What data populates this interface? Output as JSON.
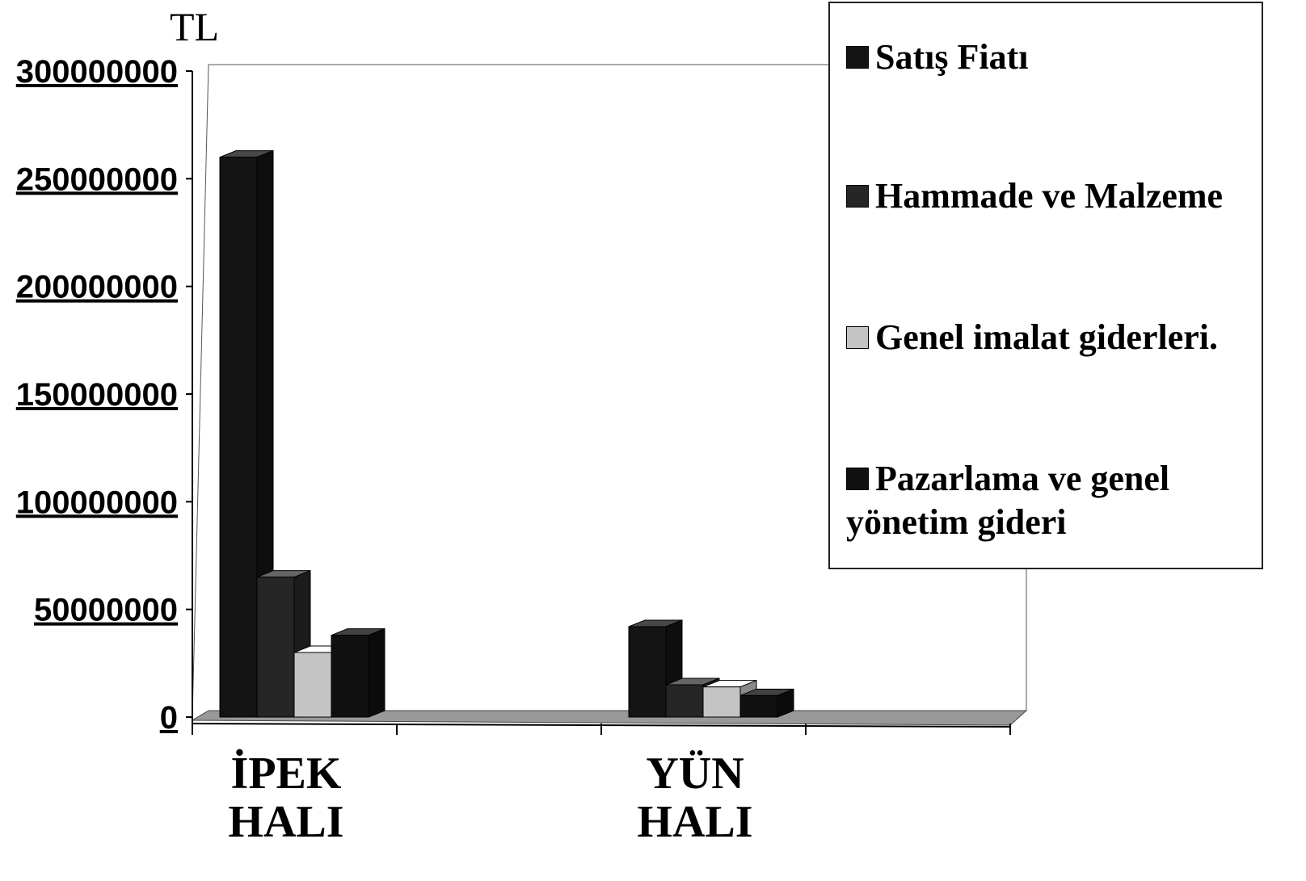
{
  "chart_data": {
    "type": "bar3d",
    "y_label": "TL",
    "categories": [
      "İPEK HALI",
      "YÜN HALI"
    ],
    "series": [
      {
        "name": "Satış  Fiatı",
        "color": "#141414",
        "values": [
          260000000,
          42000000
        ]
      },
      {
        "name": "Hammade ve Malzeme",
        "color": "#262626",
        "values": [
          65000000,
          15000000
        ]
      },
      {
        "name": "Genel imalat giderleri.",
        "color": "#c4c4c4",
        "values": [
          30000000,
          14000000
        ]
      },
      {
        "name": "Pazarlama ve genel yönetim gideri",
        "color": "#101010",
        "values": [
          38000000,
          10000000
        ]
      }
    ],
    "ylim": [
      0,
      300000000
    ],
    "yticks": [
      0,
      50000000,
      100000000,
      150000000,
      200000000,
      250000000,
      300000000
    ],
    "grid": false,
    "legend": "top-right"
  }
}
